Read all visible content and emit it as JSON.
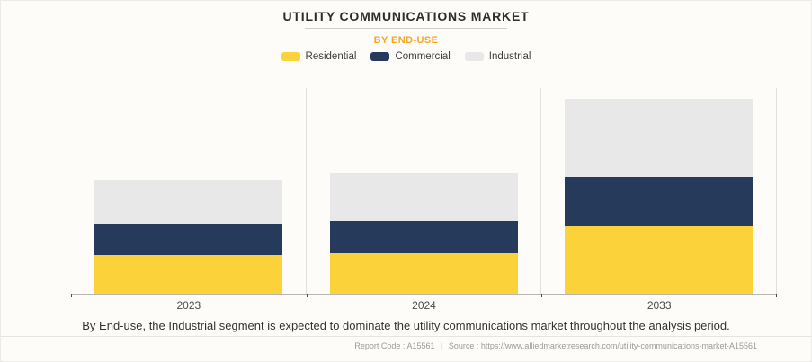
{
  "header": {
    "title": "UTILITY COMMUNICATIONS MARKET",
    "subtitle": "BY END-USE",
    "subtitle_color": "#f6a51f"
  },
  "legend": {
    "items": [
      {
        "label": "Residential",
        "color": "#fcd23b"
      },
      {
        "label": "Commercial",
        "color": "#263a5c"
      },
      {
        "label": "Industrial",
        "color": "#e8e8e8"
      }
    ]
  },
  "chart_data": {
    "type": "bar",
    "stacked": true,
    "title": "UTILITY COMMUNICATIONS MARKET",
    "subtitle": "BY END-USE",
    "categories": [
      "2023",
      "2024",
      "2033"
    ],
    "series": [
      {
        "name": "Residential",
        "color": "#fcd23b",
        "values": [
          18.6,
          19.6,
          32.7
        ]
      },
      {
        "name": "Commercial",
        "color": "#263a5c",
        "values": [
          15.3,
          15.7,
          23.9
        ]
      },
      {
        "name": "Industrial",
        "color": "#e8e8e8",
        "values": [
          21.3,
          22.9,
          37.7
        ]
      }
    ],
    "xlabel": "",
    "ylabel": "",
    "ylim": [
      0,
      100
    ],
    "y_axis_visible": false,
    "values_are_relative_estimates": true,
    "grid": "vertical-category-separators",
    "legend_position": "top"
  },
  "caption": "By End-use, the Industrial segment is expected to dominate the utility communications market throughout the analysis period.",
  "footer": {
    "report_code": "Report Code : A15561",
    "separator": "|",
    "source": "Source : https://www.alliedmarketresearch.com/utility-communications-market-A15561"
  }
}
